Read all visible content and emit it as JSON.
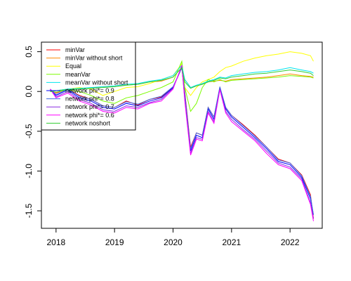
{
  "chart_data": {
    "type": "line",
    "title": "",
    "xlabel": "",
    "ylabel": "",
    "xlim": [
      2017.75,
      2022.55
    ],
    "ylim": [
      -1.72,
      0.62
    ],
    "grid": false,
    "legend_position": "top-left",
    "x_ticks": [
      2018,
      2019,
      2020,
      2021,
      2022
    ],
    "x_tick_labels": [
      "2018",
      "2019",
      "2020",
      "2021",
      "2022"
    ],
    "y_ticks": [
      0.5,
      0.0,
      -0.5,
      -1.0,
      -1.5
    ],
    "y_tick_labels": [
      "0.5",
      "0.0",
      "-0.5",
      "-1.0",
      "-1.5"
    ],
    "x": [
      2017.9,
      2018.0,
      2018.2,
      2018.4,
      2018.6,
      2018.8,
      2019.0,
      2019.2,
      2019.4,
      2019.6,
      2019.8,
      2020.0,
      2020.15,
      2020.2,
      2020.3,
      2020.4,
      2020.5,
      2020.6,
      2020.7,
      2020.8,
      2020.9,
      2021.0,
      2021.2,
      2021.4,
      2021.6,
      2021.8,
      2022.0,
      2022.2,
      2022.35,
      2022.4
    ],
    "series": [
      {
        "name": "minVar",
        "color": "#ff0000",
        "values": [
          0.02,
          -0.02,
          0.03,
          -0.05,
          -0.1,
          -0.18,
          -0.2,
          -0.12,
          -0.17,
          -0.1,
          -0.07,
          0.05,
          0.3,
          0.0,
          -0.7,
          -0.52,
          -0.55,
          -0.2,
          -0.32,
          0.05,
          -0.2,
          -0.3,
          -0.42,
          -0.55,
          -0.7,
          -0.85,
          -0.9,
          -1.05,
          -1.3,
          -1.6
        ]
      },
      {
        "name": "minVar without short",
        "color": "#ff8c00",
        "values": [
          0.0,
          0.01,
          0.03,
          0.04,
          0.04,
          0.06,
          0.06,
          0.08,
          0.09,
          0.12,
          0.13,
          0.18,
          0.3,
          0.15,
          0.05,
          0.07,
          0.09,
          0.12,
          0.13,
          0.14,
          0.13,
          0.15,
          0.16,
          0.17,
          0.18,
          0.2,
          0.22,
          0.2,
          0.19,
          0.18
        ]
      },
      {
        "name": "Equal",
        "color": "#ffff00",
        "values": [
          0.0,
          0.01,
          0.03,
          0.05,
          0.03,
          -0.05,
          0.0,
          0.05,
          0.06,
          0.1,
          0.15,
          0.2,
          0.35,
          0.05,
          -0.05,
          0.05,
          0.12,
          0.15,
          0.18,
          0.25,
          0.3,
          0.32,
          0.38,
          0.42,
          0.45,
          0.47,
          0.5,
          0.48,
          0.45,
          0.38
        ]
      },
      {
        "name": "meanVar",
        "color": "#7cfc00",
        "values": [
          0.0,
          -0.01,
          0.02,
          0.0,
          -0.05,
          -0.12,
          -0.15,
          -0.08,
          -0.05,
          0.0,
          0.05,
          0.12,
          0.38,
          0.05,
          -0.25,
          -0.15,
          0.05,
          0.15,
          0.12,
          0.15,
          0.12,
          0.14,
          0.15,
          0.16,
          0.17,
          0.18,
          0.2,
          0.19,
          0.18,
          0.17
        ]
      },
      {
        "name": "meanVar without short",
        "color": "#00e5ee",
        "values": [
          0.0,
          0.01,
          0.03,
          0.04,
          0.05,
          0.06,
          0.07,
          0.09,
          0.1,
          0.13,
          0.15,
          0.2,
          0.33,
          0.15,
          0.05,
          0.08,
          0.1,
          0.13,
          0.15,
          0.18,
          0.17,
          0.2,
          0.22,
          0.24,
          0.25,
          0.27,
          0.3,
          0.27,
          0.25,
          0.23
        ]
      },
      {
        "name": "network phi*= 0.9",
        "color": "#0000ff",
        "values": [
          0.03,
          -0.05,
          0.02,
          -0.08,
          -0.12,
          -0.2,
          -0.22,
          -0.15,
          -0.18,
          -0.12,
          -0.08,
          0.05,
          0.3,
          -0.05,
          -0.75,
          -0.55,
          -0.58,
          -0.22,
          -0.35,
          0.05,
          -0.22,
          -0.32,
          -0.45,
          -0.58,
          -0.72,
          -0.88,
          -0.92,
          -1.08,
          -1.35,
          -1.55
        ]
      },
      {
        "name": "network phi*= 0.8",
        "color": "#4169e1",
        "values": [
          0.03,
          -0.04,
          0.03,
          -0.06,
          -0.1,
          -0.18,
          -0.2,
          -0.13,
          -0.16,
          -0.1,
          -0.06,
          0.06,
          0.3,
          -0.02,
          -0.72,
          -0.52,
          -0.55,
          -0.2,
          -0.32,
          0.06,
          -0.2,
          -0.3,
          -0.43,
          -0.56,
          -0.7,
          -0.86,
          -0.9,
          -1.06,
          -1.32,
          -1.55
        ]
      },
      {
        "name": "network phi*= 0.7",
        "color": "#8a2be2",
        "values": [
          0.03,
          -0.07,
          0.0,
          -0.1,
          -0.15,
          -0.23,
          -0.25,
          -0.18,
          -0.2,
          -0.14,
          -0.1,
          0.04,
          0.32,
          -0.1,
          -0.78,
          -0.58,
          -0.6,
          -0.25,
          -0.38,
          0.03,
          -0.25,
          -0.35,
          -0.48,
          -0.6,
          -0.75,
          -0.9,
          -0.95,
          -1.1,
          -1.4,
          -1.6
        ]
      },
      {
        "name": "network phi*= 0.6",
        "color": "#ff00ff",
        "values": [
          0.03,
          -0.08,
          -0.02,
          -0.12,
          -0.17,
          -0.25,
          -0.27,
          -0.2,
          -0.22,
          -0.15,
          -0.12,
          0.03,
          0.33,
          -0.12,
          -0.8,
          -0.6,
          -0.62,
          -0.27,
          -0.4,
          0.02,
          -0.27,
          -0.38,
          -0.5,
          -0.62,
          -0.78,
          -0.92,
          -0.97,
          -1.12,
          -1.42,
          -1.63
        ]
      },
      {
        "name": "network noshort",
        "color": "#32cd32",
        "values": [
          0.0,
          0.01,
          0.02,
          0.03,
          0.04,
          0.05,
          0.06,
          0.08,
          0.09,
          0.12,
          0.14,
          0.18,
          0.3,
          0.12,
          0.04,
          0.07,
          0.09,
          0.12,
          0.14,
          0.17,
          0.16,
          0.18,
          0.2,
          0.22,
          0.23,
          0.25,
          0.27,
          0.25,
          0.23,
          0.2
        ]
      }
    ]
  }
}
